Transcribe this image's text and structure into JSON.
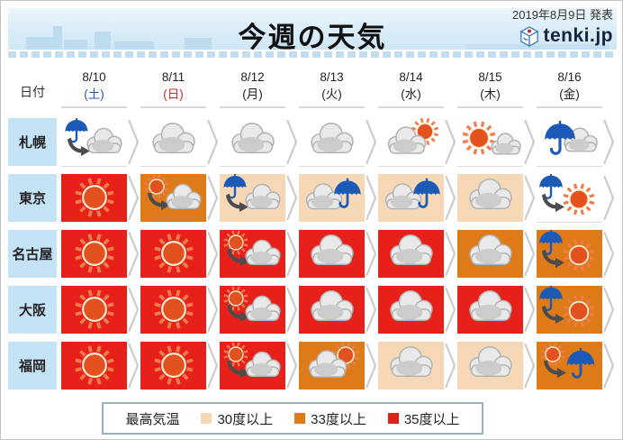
{
  "header": {
    "title": "今週の天気",
    "published": "2019年8月9日 発表",
    "logo_text": "tenki.jp"
  },
  "table": {
    "date_label": "日付",
    "days": [
      {
        "date": "8/10",
        "weekday": "(土)",
        "weekday_color": "#2b50c0"
      },
      {
        "date": "8/11",
        "weekday": "(日)",
        "weekday_color": "#cf2a21"
      },
      {
        "date": "8/12",
        "weekday": "(月)",
        "weekday_color": "#222222"
      },
      {
        "date": "8/13",
        "weekday": "(火)",
        "weekday_color": "#222222"
      },
      {
        "date": "8/14",
        "weekday": "(水)",
        "weekday_color": "#222222"
      },
      {
        "date": "8/15",
        "weekday": "(木)",
        "weekday_color": "#222222"
      },
      {
        "date": "8/16",
        "weekday": "(金)",
        "weekday_color": "#222222"
      }
    ],
    "rows": [
      {
        "city": "札幌",
        "cells": [
          {
            "icon": "rain-then-cloud",
            "temp_band": "none"
          },
          {
            "icon": "cloudy",
            "temp_band": "none"
          },
          {
            "icon": "cloudy",
            "temp_band": "none"
          },
          {
            "icon": "cloudy",
            "temp_band": "none"
          },
          {
            "icon": "cloud-with-sun",
            "temp_band": "none"
          },
          {
            "icon": "sun-with-cloud",
            "temp_band": "none"
          },
          {
            "icon": "rainy",
            "temp_band": "none"
          }
        ]
      },
      {
        "city": "東京",
        "cells": [
          {
            "icon": "sunny",
            "temp_band": "35plus"
          },
          {
            "icon": "sun-then-cloud",
            "temp_band": "33plus"
          },
          {
            "icon": "rain-then-cloud",
            "temp_band": "30plus"
          },
          {
            "icon": "cloud-with-rain",
            "temp_band": "30plus"
          },
          {
            "icon": "cloud-with-rain",
            "temp_band": "30plus"
          },
          {
            "icon": "cloudy",
            "temp_band": "30plus"
          },
          {
            "icon": "rain-then-sun",
            "temp_band": "none"
          }
        ]
      },
      {
        "city": "名古屋",
        "cells": [
          {
            "icon": "sunny",
            "temp_band": "35plus"
          },
          {
            "icon": "sunny",
            "temp_band": "35plus"
          },
          {
            "icon": "sun-then-cloud",
            "temp_band": "35plus"
          },
          {
            "icon": "cloudy",
            "temp_band": "35plus"
          },
          {
            "icon": "cloudy",
            "temp_band": "35plus"
          },
          {
            "icon": "cloudy",
            "temp_band": "33plus"
          },
          {
            "icon": "rain-then-sun",
            "temp_band": "33plus"
          }
        ]
      },
      {
        "city": "大阪",
        "cells": [
          {
            "icon": "sunny",
            "temp_band": "35plus"
          },
          {
            "icon": "sunny",
            "temp_band": "35plus"
          },
          {
            "icon": "sun-then-cloud",
            "temp_band": "35plus"
          },
          {
            "icon": "cloudy",
            "temp_band": "35plus"
          },
          {
            "icon": "cloudy",
            "temp_band": "35plus"
          },
          {
            "icon": "cloudy",
            "temp_band": "35plus"
          },
          {
            "icon": "rain-then-sun",
            "temp_band": "33plus"
          }
        ]
      },
      {
        "city": "福岡",
        "cells": [
          {
            "icon": "sunny",
            "temp_band": "35plus"
          },
          {
            "icon": "sunny",
            "temp_band": "35plus"
          },
          {
            "icon": "sun-then-cloud",
            "temp_band": "35plus"
          },
          {
            "icon": "cloud-with-sun",
            "temp_band": "33plus"
          },
          {
            "icon": "cloudy",
            "temp_band": "30plus"
          },
          {
            "icon": "cloudy",
            "temp_band": "30plus"
          },
          {
            "icon": "sun-then-rain",
            "temp_band": "33plus"
          }
        ]
      }
    ]
  },
  "legend": {
    "label": "最高気温",
    "items": [
      {
        "label": "30度以上",
        "color": "#f7d8b6"
      },
      {
        "label": "33度以上",
        "color": "#df7a18"
      },
      {
        "label": "35度以上",
        "color": "#e32119"
      }
    ]
  },
  "colors": {
    "temp_35plus": "#e8201a",
    "temp_33plus": "#df7a18",
    "temp_30plus": "#f7d8b6",
    "temp_none": "#ffffff",
    "city_label_bg": "#c5e3f6",
    "umbrella_blue": "#1c5ab8",
    "sun_orange": "#e3511f",
    "cloud_gray": "#cccccc"
  }
}
